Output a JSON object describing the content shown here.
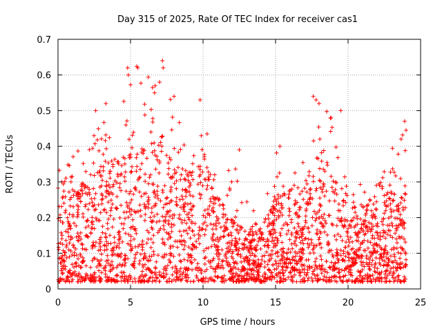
{
  "chart_data": {
    "type": "scatter",
    "title": "Day 315 of 2025, Rate Of TEC Index for receiver cas1",
    "xlabel": "GPS time / hours",
    "ylabel": "ROTI / TECUs",
    "xlim": [
      0,
      25
    ],
    "ylim": [
      0,
      0.7
    ],
    "xticks": [
      0,
      5,
      10,
      15,
      20,
      25
    ],
    "yticks": [
      0,
      0.1,
      0.2,
      0.3,
      0.4,
      0.5,
      0.6,
      0.7
    ],
    "xtick_labels": [
      "0",
      "5",
      "10",
      "15",
      "20",
      "25"
    ],
    "ytick_labels": [
      "0",
      "0.1",
      "0.2",
      "0.3",
      "0.4",
      "0.5",
      "0.6",
      "0.7"
    ],
    "grid": true,
    "marker": "+",
    "marker_color": "#ff0000",
    "series": [
      {
        "name": "ROTI",
        "description": "dense scatter of ROTI samples over 24 h",
        "envelope": {
          "x": [
            0,
            1,
            2,
            3,
            4,
            5,
            6,
            7,
            8,
            9,
            10,
            11,
            12,
            13,
            14,
            15,
            16,
            17,
            18,
            19,
            20,
            21,
            22,
            23,
            24
          ],
          "typical_max": [
            0.28,
            0.3,
            0.27,
            0.33,
            0.36,
            0.42,
            0.38,
            0.4,
            0.33,
            0.3,
            0.38,
            0.24,
            0.2,
            0.14,
            0.15,
            0.24,
            0.26,
            0.28,
            0.38,
            0.3,
            0.2,
            0.22,
            0.22,
            0.28,
            0.27
          ],
          "peak": [
            0.33,
            0.39,
            0.39,
            0.5,
            0.41,
            0.63,
            0.62,
            0.64,
            0.54,
            0.38,
            0.53,
            0.27,
            0.39,
            0.25,
            0.19,
            0.4,
            0.32,
            0.4,
            0.54,
            0.5,
            0.26,
            0.3,
            0.29,
            0.39,
            0.47
          ]
        },
        "highlights": [
          {
            "x": 4.8,
            "y": 0.62
          },
          {
            "x": 4.85,
            "y": 0.6
          },
          {
            "x": 5.5,
            "y": 0.62
          },
          {
            "x": 7.2,
            "y": 0.64
          },
          {
            "x": 7.25,
            "y": 0.62
          },
          {
            "x": 6.7,
            "y": 0.57
          },
          {
            "x": 7.0,
            "y": 0.58
          },
          {
            "x": 8.0,
            "y": 0.54
          },
          {
            "x": 3.3,
            "y": 0.52
          },
          {
            "x": 2.6,
            "y": 0.5
          },
          {
            "x": 9.8,
            "y": 0.53
          },
          {
            "x": 17.6,
            "y": 0.54
          },
          {
            "x": 17.8,
            "y": 0.53
          },
          {
            "x": 18.0,
            "y": 0.52
          },
          {
            "x": 19.5,
            "y": 0.5
          },
          {
            "x": 23.9,
            "y": 0.47
          },
          {
            "x": 24.0,
            "y": 0.445
          },
          {
            "x": 12.5,
            "y": 0.39
          },
          {
            "x": 15.3,
            "y": 0.4
          }
        ]
      }
    ]
  }
}
